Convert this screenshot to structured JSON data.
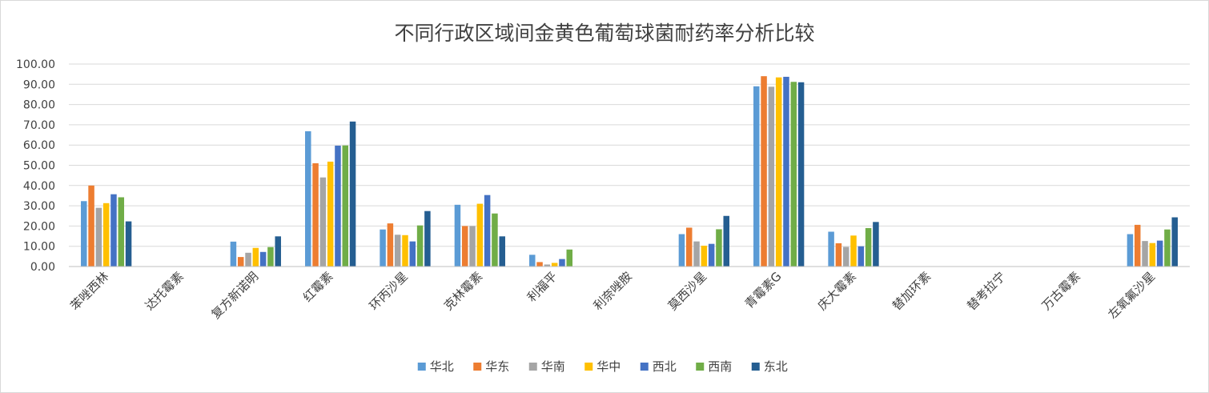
{
  "chart_data": {
    "type": "bar",
    "title": "不同行政区域间金黄色葡萄球菌耐药率分析比较",
    "xlabel": "",
    "ylabel": "",
    "ylim": [
      0,
      100
    ],
    "y_ticks": [
      "0.00",
      "10.00",
      "20.00",
      "30.00",
      "40.00",
      "50.00",
      "60.00",
      "70.00",
      "80.00",
      "90.00",
      "100.00"
    ],
    "grid": "horizontal",
    "legend_position": "bottom",
    "categories": [
      "苯唑西林",
      "达托霉素",
      "复方新诺明",
      "红霉素",
      "环丙沙星",
      "克林霉素",
      "利福平",
      "利奈唑胺",
      "莫西沙星",
      "青霉素G",
      "庆大霉素",
      "替加环素",
      "替考拉宁",
      "万古霉素",
      "左氧氟沙星"
    ],
    "series": [
      {
        "name": "华北",
        "color": "#5b9bd5",
        "values": [
          32.3,
          0,
          12.3,
          66.8,
          18.3,
          30.5,
          5.8,
          0,
          16.0,
          89.0,
          17.2,
          0,
          0,
          0,
          16.0
        ]
      },
      {
        "name": "华东",
        "color": "#ed7d31",
        "values": [
          40.0,
          0,
          4.7,
          51.0,
          21.3,
          20.0,
          2.2,
          0,
          19.2,
          94.0,
          11.5,
          0,
          0,
          0,
          20.6
        ]
      },
      {
        "name": "华南",
        "color": "#a5a5a5",
        "values": [
          29.0,
          0,
          6.8,
          44.0,
          15.7,
          20.0,
          1.0,
          0,
          12.4,
          88.8,
          9.7,
          0,
          0,
          0,
          12.6
        ]
      },
      {
        "name": "华中",
        "color": "#ffc000",
        "values": [
          31.3,
          0,
          9.2,
          51.8,
          15.5,
          31.0,
          1.8,
          0,
          10.3,
          93.4,
          15.3,
          0,
          0,
          0,
          11.6
        ]
      },
      {
        "name": "西北",
        "color": "#4472c4",
        "values": [
          35.7,
          0,
          7.2,
          59.7,
          12.4,
          35.3,
          3.7,
          0,
          11.2,
          93.7,
          10.0,
          0,
          0,
          0,
          12.8
        ]
      },
      {
        "name": "西南",
        "color": "#70ad47",
        "values": [
          34.2,
          0,
          9.6,
          59.8,
          20.3,
          26.2,
          8.4,
          0,
          18.4,
          91.2,
          19.0,
          0,
          0,
          0,
          18.3
        ]
      },
      {
        "name": "东北",
        "color": "#255e91",
        "values": [
          22.3,
          0,
          14.9,
          71.6,
          27.4,
          14.9,
          0,
          0,
          25.0,
          91.0,
          22.0,
          0,
          0,
          0,
          24.3
        ]
      }
    ]
  }
}
